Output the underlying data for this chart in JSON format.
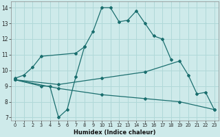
{
  "xlabel": "Humidex (Indice chaleur)",
  "bg_color": "#ceeaea",
  "grid_color": "#b0d8d8",
  "line_color": "#1a6e6e",
  "xlim": [
    -0.5,
    23.5
  ],
  "ylim": [
    6.8,
    14.4
  ],
  "line1_x": [
    0,
    1,
    2,
    3,
    7,
    8,
    9,
    10,
    11,
    12,
    13,
    14,
    15,
    16,
    17,
    18
  ],
  "line1_y": [
    9.5,
    9.7,
    10.2,
    10.9,
    11.1,
    11.5,
    12.5,
    14.0,
    14.0,
    13.1,
    13.2,
    13.8,
    13.0,
    12.2,
    12.0,
    10.7
  ],
  "line2_x": [
    0,
    3,
    4,
    5,
    6,
    7,
    8
  ],
  "line2_y": [
    9.4,
    9.0,
    9.0,
    7.0,
    7.5,
    9.6,
    11.5
  ],
  "line3_x": [
    0,
    5,
    10,
    15,
    19,
    20,
    21,
    22,
    23
  ],
  "line3_y": [
    9.4,
    9.1,
    9.5,
    9.9,
    10.6,
    9.7,
    8.5,
    8.6,
    7.5
  ],
  "line4_x": [
    0,
    5,
    10,
    15,
    19,
    23
  ],
  "line4_y": [
    9.4,
    8.85,
    8.45,
    8.2,
    8.0,
    7.5
  ],
  "xticks": [
    0,
    1,
    2,
    3,
    4,
    5,
    6,
    7,
    8,
    9,
    10,
    11,
    12,
    13,
    14,
    15,
    16,
    17,
    18,
    19,
    20,
    21,
    22,
    23
  ],
  "yticks": [
    7,
    8,
    9,
    10,
    11,
    12,
    13,
    14
  ]
}
